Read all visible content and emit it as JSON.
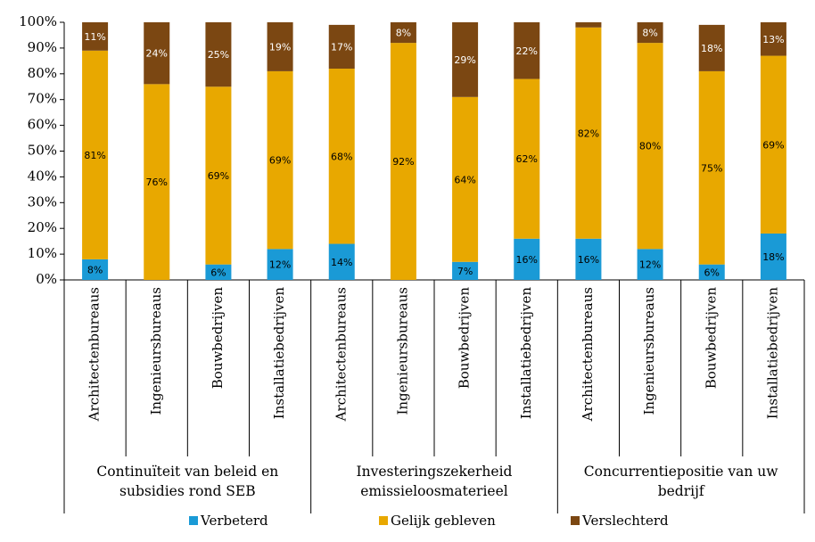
{
  "chart_data": {
    "type": "stacked_bar",
    "categories": [
      "Architectenbureaus",
      "Ingenieursbureaus",
      "Bouwbedrijven",
      "Installatiebedrijven",
      "Architectenbureaus",
      "Ingenieursbureaus",
      "Bouwbedrijven",
      "Installatiebedrijven",
      "Architectenbureaus",
      "Ingenieursbureaus",
      "Bouwbedrijven",
      "Installatiebedrijven"
    ],
    "group_labels": [
      "Continuïteit van beleid en subsidies rond SEB",
      "Investeringszekerheid emissieloosmaterieel",
      "Concurrentiepositie van uw bedrijf"
    ],
    "series": [
      {
        "name": "Verbeterd",
        "color": "#1a9ad6",
        "values": [
          8,
          0,
          6,
          12,
          14,
          0,
          7,
          16,
          16,
          12,
          6,
          18
        ],
        "value_labels": [
          "8%",
          null,
          "6%",
          "12%",
          "14%",
          null,
          "7%",
          "16%",
          "16%",
          "12%",
          "6%",
          "18%"
        ]
      },
      {
        "name": "Gelijk gebleven",
        "color": "#e8a800",
        "values": [
          81,
          76,
          69,
          69,
          68,
          92,
          64,
          62,
          82,
          80,
          75,
          69
        ],
        "value_labels": [
          "81%",
          "76%",
          "69%",
          "69%",
          "68%",
          "92%",
          "64%",
          "62%",
          "82%",
          "80%",
          "75%",
          "69%"
        ]
      },
      {
        "name": "Verslechterd",
        "color": "#7b4712",
        "values": [
          11,
          24,
          25,
          19,
          17,
          8,
          29,
          22,
          2,
          8,
          18,
          13
        ],
        "value_labels": [
          "11%",
          "24%",
          "25%",
          "19%",
          "17%",
          "8%",
          "29%",
          "22%",
          null,
          "8%",
          "18%",
          "13%"
        ]
      }
    ],
    "ylim": [
      0,
      100
    ],
    "yticks": [
      {
        "value": 0,
        "label": "0%"
      },
      {
        "value": 10,
        "label": "10%"
      },
      {
        "value": 20,
        "label": "20%"
      },
      {
        "value": 30,
        "label": "30%"
      },
      {
        "value": 40,
        "label": "40%"
      },
      {
        "value": 50,
        "label": "50%"
      },
      {
        "value": 60,
        "label": "60%"
      },
      {
        "value": 70,
        "label": "70%"
      },
      {
        "value": 80,
        "label": "80%"
      },
      {
        "value": 90,
        "label": "90%"
      },
      {
        "value": 100,
        "label": "100%"
      }
    ],
    "legend": "bottom"
  }
}
